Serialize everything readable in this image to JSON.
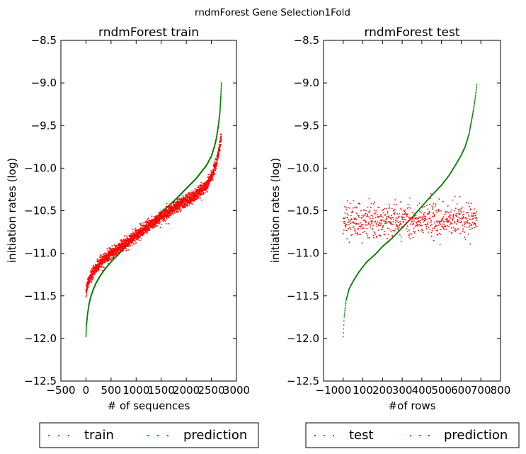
{
  "figure": {
    "suptitle": "rndmForest Gene Selection1Fold"
  },
  "chart_data": [
    {
      "type": "scatter",
      "title": "rndmForest train",
      "xlabel": "# of sequences",
      "ylabel": "initiation rates (log)",
      "xlim": [
        -500,
        3000
      ],
      "ylim": [
        -12.5,
        -8.5
      ],
      "xticks": [
        -500,
        0,
        500,
        1000,
        1500,
        2000,
        2500,
        3000
      ],
      "xtick_labels": [
        "−500",
        "0",
        "500",
        "1000",
        "1500",
        "2000",
        "2500",
        "3000"
      ],
      "yticks": [
        -12.5,
        -12.0,
        -11.5,
        -11.0,
        -10.5,
        -10.0,
        -9.5,
        -9.0,
        -8.5
      ],
      "ytick_labels": [
        "−12.5",
        "−12.0",
        "−11.5",
        "−11.0",
        "−10.5",
        "−10.0",
        "−9.5",
        "−9.0",
        "−8.5"
      ],
      "grid": false,
      "legend": "below plot, 2 columns",
      "n_points": 2700,
      "series": [
        {
          "name": "train",
          "color": "#008000",
          "marker": "dot",
          "noise": 0,
          "x": [
            0,
            10,
            30,
            60,
            100,
            150,
            200,
            300,
            400,
            500,
            600,
            700,
            800,
            1000,
            1200,
            1400,
            1600,
            1800,
            2000,
            2200,
            2400,
            2500,
            2560,
            2600,
            2640,
            2670,
            2690,
            2700
          ],
          "y": [
            -11.98,
            -11.85,
            -11.72,
            -11.6,
            -11.5,
            -11.42,
            -11.35,
            -11.25,
            -11.17,
            -11.1,
            -11.04,
            -10.98,
            -10.92,
            -10.8,
            -10.69,
            -10.58,
            -10.47,
            -10.36,
            -10.24,
            -10.12,
            -9.97,
            -9.86,
            -9.75,
            -9.65,
            -9.5,
            -9.35,
            -9.15,
            -9.0
          ]
        },
        {
          "name": "prediction",
          "color": "#ff0000",
          "marker": "dot",
          "noise": 0.035,
          "x": [
            0,
            20,
            50,
            100,
            200,
            300,
            400,
            600,
            800,
            1000,
            1200,
            1400,
            1600,
            1800,
            2000,
            2200,
            2400,
            2500,
            2600,
            2650,
            2700
          ],
          "y": [
            -11.47,
            -11.4,
            -11.33,
            -11.26,
            -11.17,
            -11.1,
            -11.05,
            -10.96,
            -10.88,
            -10.79,
            -10.7,
            -10.61,
            -10.53,
            -10.45,
            -10.38,
            -10.31,
            -10.2,
            -10.1,
            -9.95,
            -9.8,
            -9.62
          ]
        }
      ]
    },
    {
      "type": "scatter",
      "title": "rndmForest test",
      "xlabel": "#of rows",
      "ylabel": "initiation rates (log)",
      "xlim": [
        -100,
        800
      ],
      "ylim": [
        -12.5,
        -8.5
      ],
      "xticks": [
        -100,
        0,
        100,
        200,
        300,
        400,
        500,
        600,
        700,
        800
      ],
      "xtick_labels": [
        "−1000",
        "100",
        "200",
        "300",
        "400",
        "500",
        "600",
        "700",
        "800"
      ],
      "xtick_label_positions": [
        -50,
        100,
        200,
        300,
        400,
        500,
        600,
        700,
        800
      ],
      "yticks": [
        -12.5,
        -12.0,
        -11.5,
        -11.0,
        -10.5,
        -10.0,
        -9.5,
        -9.0,
        -8.5
      ],
      "ytick_labels": [
        "−12.5",
        "−12.0",
        "−11.5",
        "−11.0",
        "−10.5",
        "−10.0",
        "−9.5",
        "−9.0",
        "−8.5"
      ],
      "grid": false,
      "legend": "below plot, 2 columns",
      "n_points": 680,
      "series": [
        {
          "name": "test",
          "color": "#008000",
          "marker": "dot",
          "noise": 0,
          "x": [
            0,
            5,
            15,
            30,
            50,
            80,
            120,
            160,
            200,
            250,
            300,
            350,
            400,
            450,
            500,
            540,
            580,
            600,
            620,
            640,
            660,
            670,
            680
          ],
          "y": [
            -11.98,
            -11.75,
            -11.55,
            -11.42,
            -11.33,
            -11.22,
            -11.1,
            -11.02,
            -10.92,
            -10.82,
            -10.7,
            -10.58,
            -10.45,
            -10.32,
            -10.2,
            -10.08,
            -9.93,
            -9.85,
            -9.75,
            -9.6,
            -9.35,
            -9.2,
            -9.02
          ]
        },
        {
          "name": "prediction",
          "color": "#ff0000",
          "marker": "dot",
          "noise": 0.1,
          "x": [
            0,
            680
          ],
          "y": [
            -10.62,
            -10.6
          ]
        }
      ]
    }
  ],
  "legends": [
    {
      "items": [
        {
          "label": "train",
          "color": "#008000"
        },
        {
          "label": "prediction",
          "color": "#ff0000"
        }
      ]
    },
    {
      "items": [
        {
          "label": "test",
          "color": "#008000"
        },
        {
          "label": "prediction",
          "color": "#ff0000"
        }
      ]
    }
  ]
}
